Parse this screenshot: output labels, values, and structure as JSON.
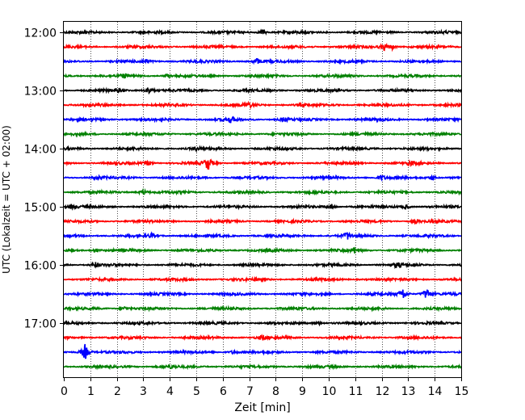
{
  "chart_data": {
    "type": "line",
    "title": "",
    "xlabel": "Zeit  [min]",
    "ylabel": "UTC (Lokalzeit = UTC + 02:00)",
    "xlim": [
      0,
      15
    ],
    "x_ticks": [
      0,
      1,
      2,
      3,
      4,
      5,
      6,
      7,
      8,
      9,
      10,
      11,
      12,
      13,
      14,
      15
    ],
    "x_tick_labels": [
      "0",
      "1",
      "2",
      "3",
      "4",
      "5",
      "6",
      "7",
      "8",
      "9",
      "10",
      "11",
      "12",
      "13",
      "14",
      "15"
    ],
    "y_tick_labels": [
      "12:00",
      "13:00",
      "14:00",
      "15:00",
      "16:00",
      "17:00"
    ],
    "trace_interval_min": 15,
    "first_trace_time": "12:00",
    "grid": "vertical dotted",
    "colors": [
      "#000000",
      "#ff0000",
      "#0000ff",
      "#008000"
    ],
    "series": [
      {
        "start": "12:00",
        "color": "#000000",
        "events": [
          {
            "t": 7.5,
            "amp": 0.35
          }
        ]
      },
      {
        "start": "12:15",
        "color": "#ff0000",
        "events": [
          {
            "t": 12.1,
            "amp": 0.45
          },
          {
            "t": 12.4,
            "amp": 0.3
          }
        ]
      },
      {
        "start": "12:30",
        "color": "#0000ff",
        "events": [
          {
            "t": 7.3,
            "amp": 0.4
          },
          {
            "t": 3.1,
            "amp": 0.25
          }
        ]
      },
      {
        "start": "12:45",
        "color": "#008000",
        "events": [
          {
            "t": 2.3,
            "amp": 0.25
          },
          {
            "t": 3.9,
            "amp": 0.2
          }
        ]
      },
      {
        "start": "13:00",
        "color": "#000000",
        "events": [
          {
            "t": 3.2,
            "amp": 0.6
          },
          {
            "t": 2.0,
            "amp": 0.25
          }
        ]
      },
      {
        "start": "13:15",
        "color": "#ff0000",
        "events": [
          {
            "t": 7.0,
            "amp": 0.3
          }
        ]
      },
      {
        "start": "13:30",
        "color": "#0000ff",
        "events": [
          {
            "t": 6.3,
            "amp": 0.4
          },
          {
            "t": 8.3,
            "amp": 0.3
          }
        ]
      },
      {
        "start": "13:45",
        "color": "#008000",
        "events": []
      },
      {
        "start": "14:00",
        "color": "#000000",
        "events": [
          {
            "t": 5.0,
            "amp": 0.2
          }
        ]
      },
      {
        "start": "14:15",
        "color": "#ff0000",
        "events": [
          {
            "t": 5.45,
            "amp": 1.0
          },
          {
            "t": 3.2,
            "amp": 0.35
          },
          {
            "t": 13.1,
            "amp": 0.3
          }
        ]
      },
      {
        "start": "14:30",
        "color": "#0000ff",
        "events": [
          {
            "t": 12.0,
            "amp": 0.35
          },
          {
            "t": 13.9,
            "amp": 0.35
          },
          {
            "t": 1.3,
            "amp": 0.25
          }
        ]
      },
      {
        "start": "14:45",
        "color": "#008000",
        "events": [
          {
            "t": 3.0,
            "amp": 0.4
          }
        ]
      },
      {
        "start": "15:00",
        "color": "#000000",
        "events": [
          {
            "t": 10.1,
            "amp": 0.35
          },
          {
            "t": 12.9,
            "amp": 0.3
          },
          {
            "t": 0.3,
            "amp": 0.3
          }
        ]
      },
      {
        "start": "15:15",
        "color": "#ff0000",
        "events": [
          {
            "t": 13.3,
            "amp": 0.3
          }
        ]
      },
      {
        "start": "15:30",
        "color": "#0000ff",
        "events": [
          {
            "t": 10.7,
            "amp": 0.5
          },
          {
            "t": 3.3,
            "amp": 0.25
          }
        ]
      },
      {
        "start": "15:45",
        "color": "#008000",
        "events": [
          {
            "t": 11.0,
            "amp": 0.45
          },
          {
            "t": 1.2,
            "amp": 0.25
          }
        ]
      },
      {
        "start": "16:00",
        "color": "#000000",
        "events": [
          {
            "t": 12.6,
            "amp": 0.4
          },
          {
            "t": 1.2,
            "amp": 0.35
          }
        ]
      },
      {
        "start": "16:15",
        "color": "#ff0000",
        "events": []
      },
      {
        "start": "16:30",
        "color": "#0000ff",
        "events": [
          {
            "t": 12.8,
            "amp": 0.8
          },
          {
            "t": 13.7,
            "amp": 0.9
          }
        ]
      },
      {
        "start": "16:45",
        "color": "#008000",
        "events": [
          {
            "t": 2.3,
            "amp": 0.25
          }
        ]
      },
      {
        "start": "17:00",
        "color": "#000000",
        "events": [
          {
            "t": 9.6,
            "amp": 0.3
          }
        ]
      },
      {
        "start": "17:15",
        "color": "#ff0000",
        "events": [
          {
            "t": 7.5,
            "amp": 0.35
          }
        ]
      },
      {
        "start": "17:30",
        "color": "#0000ff",
        "events": [
          {
            "t": 0.8,
            "amp": 1.1
          },
          {
            "t": 6.4,
            "amp": 0.25
          }
        ]
      },
      {
        "start": "17:45",
        "color": "#008000",
        "events": [
          {
            "t": 4.0,
            "amp": 0.2
          }
        ]
      }
    ]
  }
}
